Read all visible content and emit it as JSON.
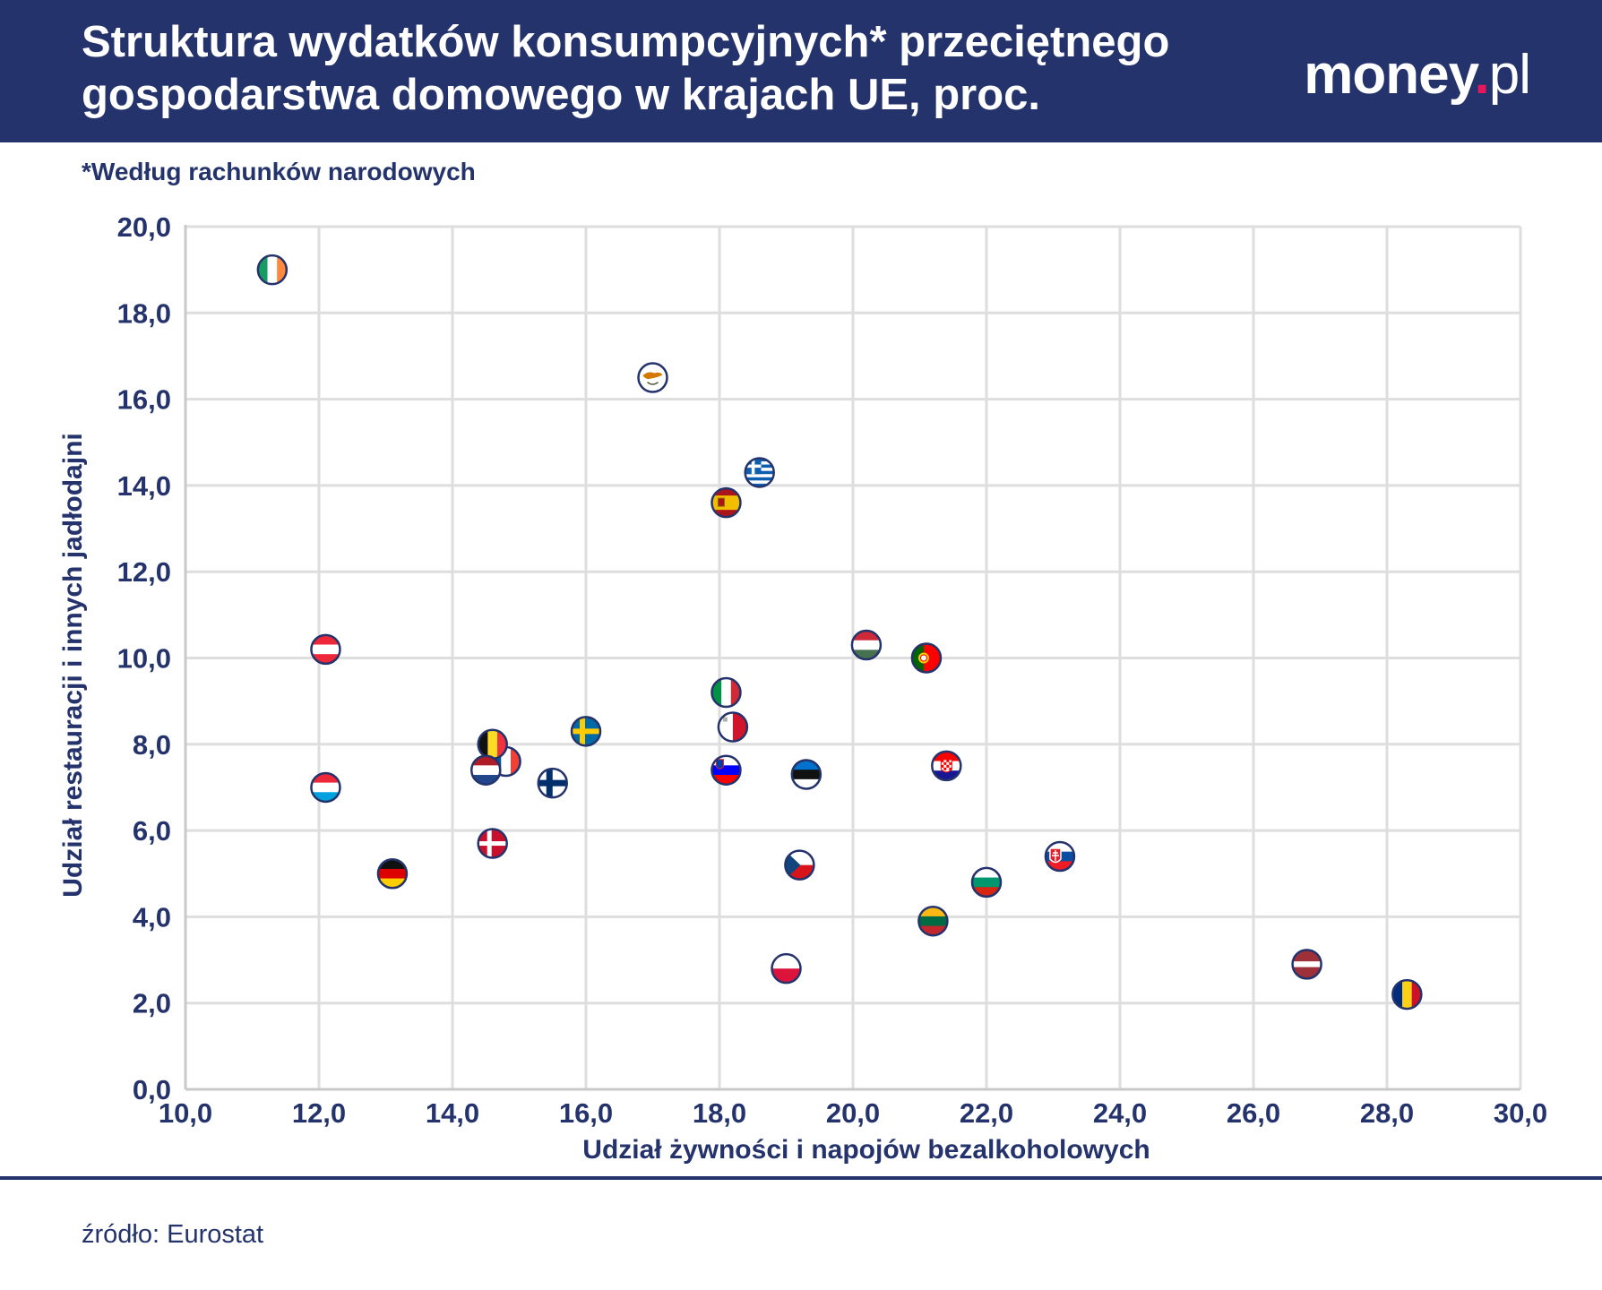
{
  "header": {
    "title_line1": "Struktura wydatków konsumpcyjnych* przeciętnego",
    "title_line2": "gospodarstwa domowego w krajach UE, proc.",
    "logo_main": "money",
    "logo_dot": ".",
    "logo_tld": "pl"
  },
  "subtitle": "*Według rachunków narodowych",
  "source": "źródło: Eurostat",
  "colors": {
    "header_bg": "#24336b",
    "text_navy": "#24336b",
    "logo_dot": "#e8175d",
    "grid": "#dedede"
  },
  "chart_data": {
    "type": "scatter",
    "title": "Struktura wydatków konsumpcyjnych* przeciętnego gospodarstwa domowego w krajach UE, proc.",
    "xlabel": "Udział żywności i napojów bezalkoholowych",
    "ylabel": "Udział restauracji i innych jadłodajni",
    "xlim": [
      10,
      30
    ],
    "ylim": [
      0,
      20
    ],
    "xticks": [
      "10,0",
      "12,0",
      "14,0",
      "16,0",
      "18,0",
      "20,0",
      "22,0",
      "24,0",
      "26,0",
      "28,0",
      "30,0"
    ],
    "yticks": [
      "0,0",
      "2,0",
      "4,0",
      "6,0",
      "8,0",
      "10,0",
      "12,0",
      "14,0",
      "16,0",
      "18,0",
      "20,0"
    ],
    "grid": true,
    "points": [
      {
        "name": "ireland",
        "flag": "ie",
        "x": 11.3,
        "y": 19.0
      },
      {
        "name": "cyprus",
        "flag": "cy",
        "x": 17.0,
        "y": 16.5
      },
      {
        "name": "greece",
        "flag": "gr",
        "x": 18.6,
        "y": 14.3
      },
      {
        "name": "spain",
        "flag": "es",
        "x": 18.1,
        "y": 13.6
      },
      {
        "name": "austria",
        "flag": "at",
        "x": 12.1,
        "y": 10.2
      },
      {
        "name": "hungary",
        "flag": "hu",
        "x": 20.2,
        "y": 10.3
      },
      {
        "name": "portugal",
        "flag": "pt",
        "x": 21.1,
        "y": 10.0
      },
      {
        "name": "italy",
        "flag": "it",
        "x": 18.1,
        "y": 9.2
      },
      {
        "name": "malta",
        "flag": "mt",
        "x": 18.2,
        "y": 8.4
      },
      {
        "name": "sweden",
        "flag": "se",
        "x": 16.0,
        "y": 8.3
      },
      {
        "name": "france",
        "flag": "fr",
        "x": 14.8,
        "y": 7.6
      },
      {
        "name": "belgium",
        "flag": "be",
        "x": 14.6,
        "y": 8.0
      },
      {
        "name": "netherlands",
        "flag": "nl",
        "x": 14.5,
        "y": 7.4
      },
      {
        "name": "finland",
        "flag": "fi",
        "x": 15.5,
        "y": 7.1
      },
      {
        "name": "slovenia",
        "flag": "si",
        "x": 18.1,
        "y": 7.4
      },
      {
        "name": "estonia",
        "flag": "ee",
        "x": 19.3,
        "y": 7.3
      },
      {
        "name": "croatia",
        "flag": "hr",
        "x": 21.4,
        "y": 7.5
      },
      {
        "name": "luxembourg",
        "flag": "lu",
        "x": 12.1,
        "y": 7.0
      },
      {
        "name": "denmark",
        "flag": "dk",
        "x": 14.6,
        "y": 5.7
      },
      {
        "name": "germany",
        "flag": "de",
        "x": 13.1,
        "y": 5.0
      },
      {
        "name": "czechia",
        "flag": "cz",
        "x": 19.2,
        "y": 5.2
      },
      {
        "name": "slovakia",
        "flag": "sk",
        "x": 23.1,
        "y": 5.4
      },
      {
        "name": "bulgaria",
        "flag": "bg",
        "x": 22.0,
        "y": 4.8
      },
      {
        "name": "lithuania",
        "flag": "lt",
        "x": 21.2,
        "y": 3.9
      },
      {
        "name": "poland",
        "flag": "pl",
        "x": 19.0,
        "y": 2.8
      },
      {
        "name": "latvia",
        "flag": "lv",
        "x": 26.8,
        "y": 2.9
      },
      {
        "name": "romania",
        "flag": "ro",
        "x": 28.3,
        "y": 2.2
      }
    ]
  }
}
